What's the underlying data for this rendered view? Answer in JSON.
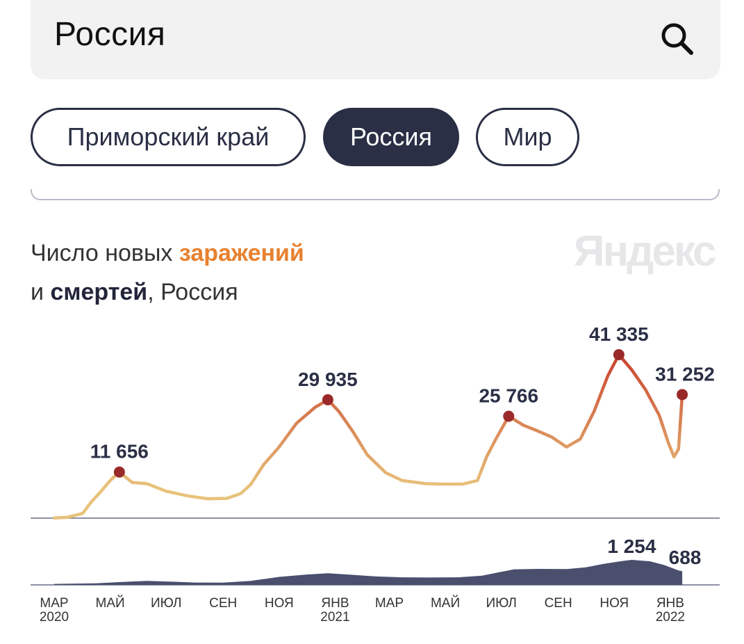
{
  "search": {
    "value": "Россия"
  },
  "chips": [
    {
      "label": "Приморский край",
      "active": false
    },
    {
      "label": "Россия",
      "active": true
    },
    {
      "label": "Мир",
      "active": false
    }
  ],
  "title": {
    "part1": "Число новых ",
    "highlight": "заражений",
    "line2_prefix": "и ",
    "line2_bold": "смертей",
    "line2_suffix": ", Россия"
  },
  "brand": "Яндекс",
  "icons": {
    "search": "search-icon"
  },
  "colors": {
    "accent_orange": "#e8812f",
    "curve_low": "#e8c27a",
    "curve_high": "#c83b2c",
    "peak_marker": "#9a2a2a",
    "deaths_fill": "#4a4f6e",
    "dark": "#2a2f45"
  },
  "chart_data": [
    {
      "type": "line",
      "name": "Заражения",
      "x_ticks": [
        {
          "label": "МАР",
          "year": "2020",
          "date": "2020-03-01"
        },
        {
          "label": "МАЙ",
          "year": "",
          "date": "2020-05-01"
        },
        {
          "label": "ИЮЛ",
          "year": "",
          "date": "2020-07-01"
        },
        {
          "label": "СЕН",
          "year": "",
          "date": "2020-09-01"
        },
        {
          "label": "НОЯ",
          "year": "",
          "date": "2020-11-01"
        },
        {
          "label": "ЯНВ",
          "year": "2021",
          "date": "2021-01-01"
        },
        {
          "label": "МАР",
          "year": "",
          "date": "2021-03-01"
        },
        {
          "label": "МАЙ",
          "year": "",
          "date": "2021-05-01"
        },
        {
          "label": "ИЮЛ",
          "year": "",
          "date": "2021-07-01"
        },
        {
          "label": "СЕН",
          "year": "",
          "date": "2021-09-01"
        },
        {
          "label": "НОЯ",
          "year": "",
          "date": "2021-11-01"
        },
        {
          "label": "ЯНВ",
          "year": "2022",
          "date": "2022-01-01"
        }
      ],
      "points": [
        [
          "2020-03-01",
          50
        ],
        [
          "2020-03-15",
          200
        ],
        [
          "2020-04-01",
          1200
        ],
        [
          "2020-04-10",
          4000
        ],
        [
          "2020-04-20",
          6500
        ],
        [
          "2020-05-01",
          9500
        ],
        [
          "2020-05-11",
          11656
        ],
        [
          "2020-05-25",
          9000
        ],
        [
          "2020-06-10",
          8700
        ],
        [
          "2020-07-01",
          6800
        ],
        [
          "2020-07-25",
          5600
        ],
        [
          "2020-08-15",
          4900
        ],
        [
          "2020-09-05",
          5000
        ],
        [
          "2020-09-20",
          6200
        ],
        [
          "2020-10-01",
          8500
        ],
        [
          "2020-10-15",
          13500
        ],
        [
          "2020-11-01",
          18000
        ],
        [
          "2020-11-20",
          24000
        ],
        [
          "2020-12-10",
          28000
        ],
        [
          "2020-12-24",
          29935
        ],
        [
          "2021-01-05",
          27000
        ],
        [
          "2021-01-20",
          22000
        ],
        [
          "2021-02-05",
          16000
        ],
        [
          "2021-02-25",
          11500
        ],
        [
          "2021-03-15",
          9500
        ],
        [
          "2021-04-10",
          8700
        ],
        [
          "2021-05-01",
          8600
        ],
        [
          "2021-05-20",
          8600
        ],
        [
          "2021-06-05",
          9500
        ],
        [
          "2021-06-15",
          15500
        ],
        [
          "2021-06-25",
          20000
        ],
        [
          "2021-07-09",
          25766
        ],
        [
          "2021-07-25",
          23500
        ],
        [
          "2021-08-10",
          22000
        ],
        [
          "2021-08-25",
          20500
        ],
        [
          "2021-09-10",
          18000
        ],
        [
          "2021-09-25",
          20000
        ],
        [
          "2021-10-10",
          27000
        ],
        [
          "2021-10-25",
          36000
        ],
        [
          "2021-11-06",
          41335
        ],
        [
          "2021-11-20",
          37500
        ],
        [
          "2021-12-05",
          32500
        ],
        [
          "2021-12-20",
          26000
        ],
        [
          "2021-12-30",
          19000
        ],
        [
          "2022-01-05",
          15500
        ],
        [
          "2022-01-10",
          17500
        ],
        [
          "2022-01-14",
          31252
        ]
      ],
      "peak_labels": [
        {
          "date": "2020-05-11",
          "value": 11656,
          "label": "11 656"
        },
        {
          "date": "2020-12-24",
          "value": 29935,
          "label": "29 935"
        },
        {
          "date": "2021-07-09",
          "value": 25766,
          "label": "25 766"
        },
        {
          "date": "2021-11-06",
          "value": 41335,
          "label": "41 335"
        },
        {
          "date": "2022-01-14",
          "value": 31252,
          "label": "31 252"
        }
      ],
      "x_range": [
        "2020-03-01",
        "2022-01-20"
      ],
      "ylim": [
        0,
        41335
      ]
    },
    {
      "type": "area",
      "name": "Смерти",
      "points": [
        [
          "2020-03-01",
          50
        ],
        [
          "2020-04-15",
          80
        ],
        [
          "2020-05-15",
          150
        ],
        [
          "2020-06-10",
          200
        ],
        [
          "2020-07-01",
          170
        ],
        [
          "2020-08-01",
          120
        ],
        [
          "2020-09-01",
          110
        ],
        [
          "2020-10-01",
          200
        ],
        [
          "2020-11-01",
          400
        ],
        [
          "2020-12-01",
          520
        ],
        [
          "2020-12-24",
          580
        ],
        [
          "2021-01-15",
          520
        ],
        [
          "2021-02-15",
          420
        ],
        [
          "2021-03-15",
          380
        ],
        [
          "2021-04-15",
          370
        ],
        [
          "2021-05-15",
          380
        ],
        [
          "2021-06-10",
          460
        ],
        [
          "2021-06-25",
          600
        ],
        [
          "2021-07-15",
          780
        ],
        [
          "2021-08-10",
          800
        ],
        [
          "2021-09-10",
          790
        ],
        [
          "2021-10-01",
          880
        ],
        [
          "2021-10-20",
          1050
        ],
        [
          "2021-11-10",
          1200
        ],
        [
          "2021-11-20",
          1254
        ],
        [
          "2021-12-10",
          1180
        ],
        [
          "2021-12-25",
          1000
        ],
        [
          "2022-01-10",
          720
        ],
        [
          "2022-01-14",
          688
        ]
      ],
      "peak_labels": [
        {
          "date": "2021-11-20",
          "value": 1254,
          "label": "1 254"
        },
        {
          "date": "2022-01-14",
          "value": 688,
          "label": "688"
        }
      ],
      "x_range": [
        "2020-03-01",
        "2022-01-20"
      ],
      "ylim": [
        0,
        1254
      ]
    }
  ]
}
